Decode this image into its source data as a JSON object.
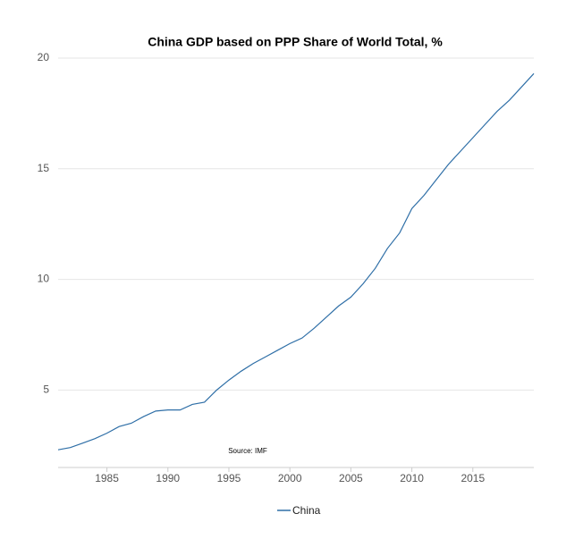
{
  "chart_data": {
    "type": "line",
    "title": "China GDP based on PPP Share of World Total, %",
    "annotation": "Source: IMF",
    "x": [
      1981,
      1982,
      1983,
      1984,
      1985,
      1986,
      1987,
      1988,
      1989,
      1990,
      1991,
      1992,
      1993,
      1994,
      1995,
      1996,
      1997,
      1998,
      1999,
      2000,
      2001,
      2002,
      2003,
      2004,
      2005,
      2006,
      2007,
      2008,
      2009,
      2010,
      2011,
      2012,
      2013,
      2014,
      2015,
      2016,
      2017,
      2018,
      2019,
      2020
    ],
    "series": [
      {
        "name": "China",
        "color": "#2f6fa7",
        "values": [
          2.3,
          2.4,
          2.6,
          2.8,
          3.05,
          3.35,
          3.5,
          3.8,
          4.05,
          4.1,
          4.1,
          4.35,
          4.45,
          5.0,
          5.45,
          5.85,
          6.2,
          6.5,
          6.8,
          7.1,
          7.35,
          7.8,
          8.3,
          8.8,
          9.2,
          9.8,
          10.5,
          11.4,
          12.1,
          13.2,
          13.8,
          14.5,
          15.2,
          15.8,
          16.4,
          17.0,
          17.6,
          18.1,
          18.7,
          19.3
        ]
      }
    ],
    "xlim": [
      1981,
      2020
    ],
    "xticks": [
      1985,
      1990,
      1995,
      2000,
      2005,
      2010,
      2015
    ],
    "ylim": [
      1.5,
      20
    ],
    "yticks": [
      5,
      10,
      15,
      20
    ],
    "grid": true
  }
}
